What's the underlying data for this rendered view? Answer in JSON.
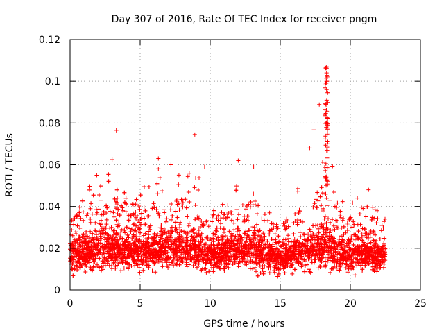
{
  "chart_data": {
    "type": "scatter",
    "title": "Day 307 of 2016, Rate Of TEC Index for receiver pngm",
    "xlabel": "GPS time / hours",
    "ylabel": "ROTI / TECUs",
    "xlim": [
      0,
      25
    ],
    "ylim": [
      0,
      0.12
    ],
    "xticks": [
      0,
      5,
      10,
      15,
      20,
      25
    ],
    "xtick_labels": [
      "0",
      "5",
      "10",
      "15",
      "20",
      "25"
    ],
    "yticks": [
      0,
      0.02,
      0.04,
      0.06,
      0.08,
      0.1,
      0.12
    ],
    "ytick_labels": [
      "0",
      "0.02",
      "0.04",
      "0.06",
      "0.08",
      "0.1",
      "0.12"
    ],
    "grid": true,
    "marker": "+",
    "color": "#ff0000",
    "data_range_x": [
      0,
      22.5
    ],
    "notable_points": [
      {
        "x": 3.3,
        "y": 0.0765
      },
      {
        "x": 8.9,
        "y": 0.0745
      },
      {
        "x": 18.3,
        "y": 0.107
      },
      {
        "x": 18.3,
        "y": 0.104
      },
      {
        "x": 18.3,
        "y": 0.1
      },
      {
        "x": 18.3,
        "y": 0.096
      },
      {
        "x": 18.2,
        "y": 0.0865
      },
      {
        "x": 18.4,
        "y": 0.079
      },
      {
        "x": 17.1,
        "y": 0.068
      },
      {
        "x": 3.0,
        "y": 0.0625
      },
      {
        "x": 6.3,
        "y": 0.063
      },
      {
        "x": 12.0,
        "y": 0.062
      },
      {
        "x": 7.2,
        "y": 0.06
      },
      {
        "x": 9.6,
        "y": 0.059
      },
      {
        "x": 1.9,
        "y": 0.055
      },
      {
        "x": 13.1,
        "y": 0.059
      },
      {
        "x": 20.5,
        "y": 0.044
      },
      {
        "x": 21.3,
        "y": 0.048
      }
    ],
    "density_profile": [
      {
        "x": 0.0,
        "p95": 0.028,
        "p99": 0.033,
        "max": 0.03
      },
      {
        "x": 1.0,
        "p95": 0.03,
        "p99": 0.038,
        "max": 0.046
      },
      {
        "x": 2.0,
        "p95": 0.033,
        "p99": 0.04,
        "max": 0.055
      },
      {
        "x": 3.0,
        "p95": 0.034,
        "p99": 0.042,
        "max": 0.0625
      },
      {
        "x": 4.0,
        "p95": 0.033,
        "p99": 0.042,
        "max": 0.05
      },
      {
        "x": 5.0,
        "p95": 0.032,
        "p99": 0.04,
        "max": 0.047
      },
      {
        "x": 6.0,
        "p95": 0.033,
        "p99": 0.042,
        "max": 0.06
      },
      {
        "x": 7.0,
        "p95": 0.034,
        "p99": 0.043,
        "max": 0.061
      },
      {
        "x": 8.0,
        "p95": 0.034,
        "p99": 0.043,
        "max": 0.055
      },
      {
        "x": 9.0,
        "p95": 0.034,
        "p99": 0.044,
        "max": 0.066
      },
      {
        "x": 10.0,
        "p95": 0.028,
        "p99": 0.035,
        "max": 0.045
      },
      {
        "x": 11.0,
        "p95": 0.029,
        "p99": 0.036,
        "max": 0.042
      },
      {
        "x": 12.0,
        "p95": 0.033,
        "p99": 0.042,
        "max": 0.061
      },
      {
        "x": 13.0,
        "p95": 0.033,
        "p99": 0.042,
        "max": 0.059
      },
      {
        "x": 14.0,
        "p95": 0.028,
        "p99": 0.036,
        "max": 0.04
      },
      {
        "x": 15.0,
        "p95": 0.025,
        "p99": 0.03,
        "max": 0.031
      },
      {
        "x": 16.0,
        "p95": 0.029,
        "p99": 0.036,
        "max": 0.045
      },
      {
        "x": 17.0,
        "p95": 0.033,
        "p99": 0.042,
        "max": 0.068
      },
      {
        "x": 18.0,
        "p95": 0.038,
        "p99": 0.05,
        "max": 0.107
      },
      {
        "x": 19.0,
        "p95": 0.031,
        "p99": 0.039,
        "max": 0.056
      },
      {
        "x": 20.0,
        "p95": 0.028,
        "p99": 0.035,
        "max": 0.044
      },
      {
        "x": 21.0,
        "p95": 0.029,
        "p99": 0.037,
        "max": 0.048
      },
      {
        "x": 22.0,
        "p95": 0.027,
        "p99": 0.034,
        "max": 0.038
      },
      {
        "x": 22.5,
        "p95": 0.027,
        "p99": 0.034,
        "max": 0.036
      }
    ],
    "min_level": 0.003
  }
}
